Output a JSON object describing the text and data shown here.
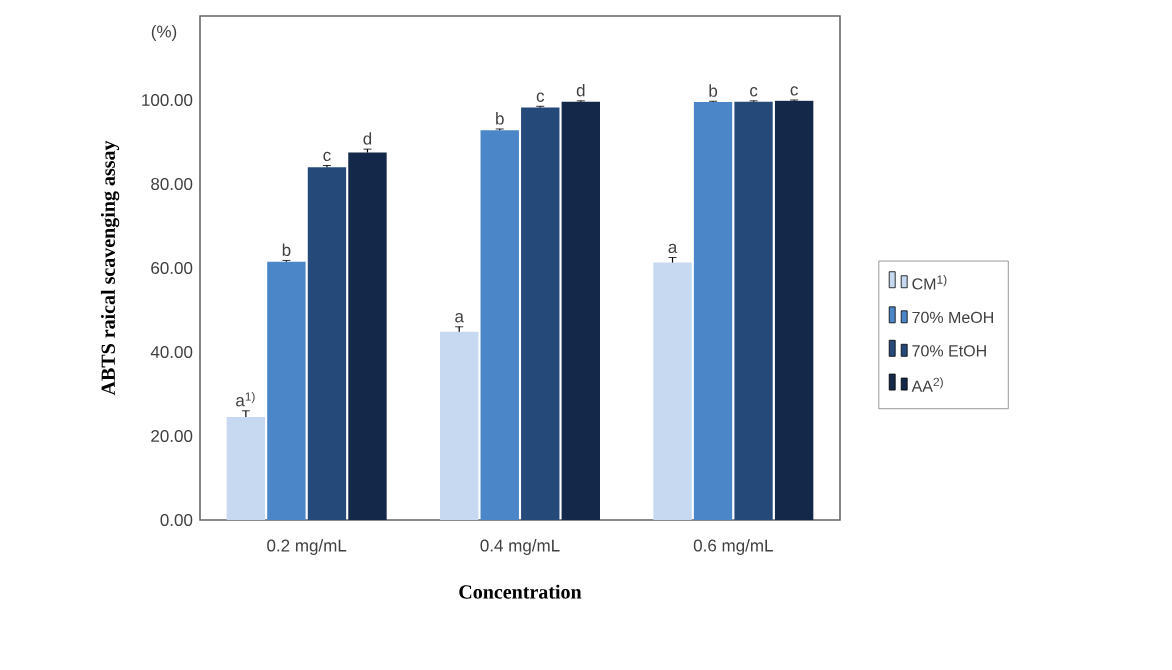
{
  "chart_data": {
    "type": "bar",
    "xlabel": "Concentration",
    "ylabel": "ABTS  raical scavenging assay",
    "annotations": [
      "(%)",
      "a$^{1)}$",
      "a",
      "a",
      "b",
      "b",
      "b",
      "c",
      "c",
      "c",
      "d",
      "d",
      "c"
    ],
    "categories": [
      "0.2 mg/mL",
      "0.4 mg/mL",
      "0.6 mg/mL"
    ],
    "series": [
      {
        "name": "CM$^{1)}$",
        "color": "#c6d9f0",
        "values": [
          24.5,
          44.8,
          61.3
        ],
        "errors": [
          1.5,
          1.2,
          1.2
        ]
      },
      {
        "name": "70% MeOH",
        "color": "#4a86c8",
        "values": [
          61.5,
          92.8,
          99.5
        ],
        "errors": [
          0.3,
          0.3,
          0.2
        ]
      },
      {
        "name": "70% EtOH",
        "color": "#254a7a",
        "values": [
          84.0,
          98.2,
          99.6
        ],
        "errors": [
          0.4,
          0.3,
          0.2
        ]
      },
      {
        "name": "AA$^{2)}$",
        "color": "#14284a",
        "values": [
          87.5,
          99.6,
          99.8
        ],
        "errors": [
          0.8,
          0.2,
          0.2
        ]
      }
    ],
    "ylim": [
      0,
      120
    ],
    "yticks": [
      {
        "value": 0,
        "label": "0.00"
      },
      {
        "value": 20,
        "label": "20.00"
      },
      {
        "value": 40,
        "label": "40.00"
      },
      {
        "value": 60,
        "label": "60.00"
      },
      {
        "value": 80,
        "label": "80.00"
      },
      {
        "value": 100,
        "label": "100.00"
      }
    ],
    "grid": false,
    "legend": "right"
  }
}
